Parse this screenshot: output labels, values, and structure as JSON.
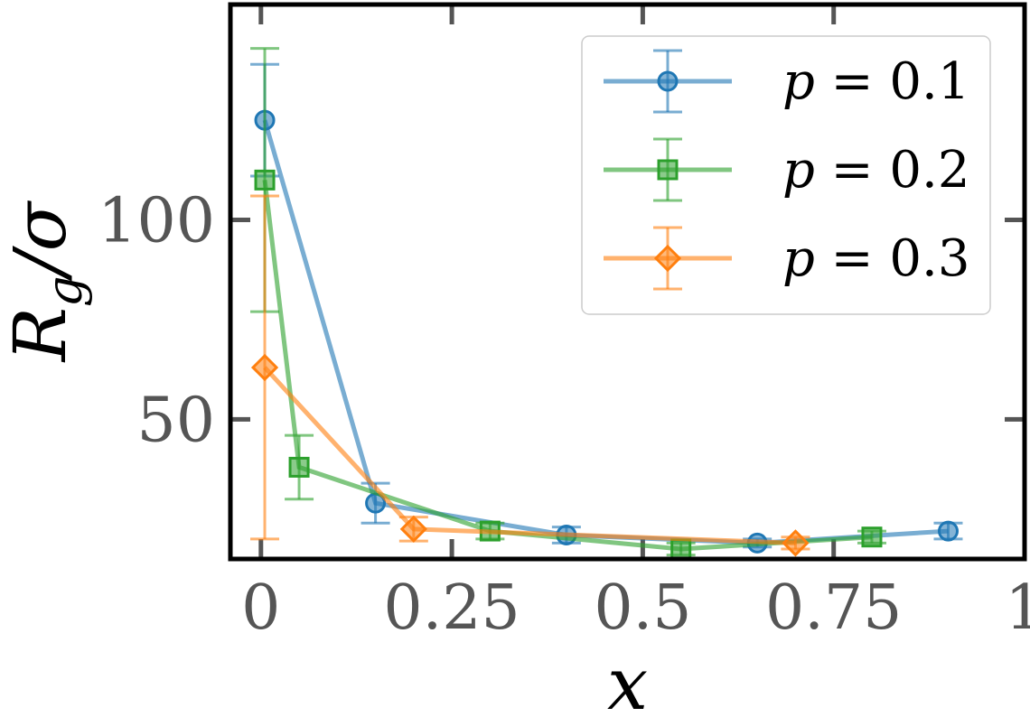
{
  "chart_data": {
    "type": "line",
    "title": "",
    "xlabel": "x",
    "ylabel": "R_g / σ",
    "ylabel_parts": {
      "main": "R",
      "sub": "g",
      "rest": "/σ"
    },
    "xlim": [
      -0.04,
      1.0
    ],
    "ylim": [
      15,
      154
    ],
    "x_ticks": [
      0,
      0.25,
      0.5,
      0.75,
      1
    ],
    "x_tick_labels": [
      "0",
      "0.25",
      "0.5",
      "0.75",
      "1"
    ],
    "y_ticks": [
      50,
      100
    ],
    "y_tick_labels": [
      "50",
      "100"
    ],
    "grid": false,
    "legend_position": "top-right",
    "series": [
      {
        "name": "p = 0.1",
        "label_var": "p",
        "label_val": "0.1",
        "color": "#1f77b4",
        "marker": "circle",
        "x": [
          0.005,
          0.15,
          0.4,
          0.65,
          0.9
        ],
        "y": [
          125,
          29,
          21,
          19,
          22
        ],
        "yerr": [
          14,
          5,
          2,
          1,
          2
        ]
      },
      {
        "name": "p = 0.2",
        "label_var": "p",
        "label_val": "0.2",
        "color": "#2ca02c",
        "marker": "square",
        "x": [
          0.005,
          0.05,
          0.3,
          0.55,
          0.8
        ],
        "y": [
          110,
          38,
          22,
          17.5,
          20.5
        ],
        "yerr": [
          33,
          8,
          2,
          1.5,
          1.5
        ]
      },
      {
        "name": "p = 0.3",
        "label_var": "p",
        "label_val": "0.3",
        "color": "#ff7f0e",
        "marker": "diamond",
        "x": [
          0.005,
          0.2,
          0.7
        ],
        "y": [
          63,
          22.5,
          19
        ],
        "yerr": [
          43,
          3,
          1.5
        ]
      }
    ]
  }
}
